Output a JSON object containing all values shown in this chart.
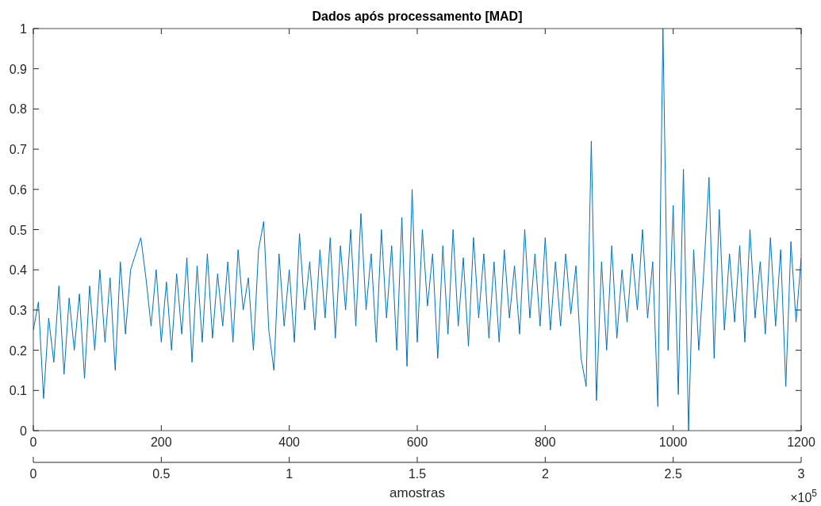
{
  "chart_data": {
    "type": "line",
    "title": "Dados após processamento [MAD]",
    "x2label": "amostras",
    "annotations": [
      "×10$^{5}$"
    ],
    "xlim": [
      0,
      1200
    ],
    "xticks": [
      0,
      200,
      400,
      600,
      800,
      1000,
      1200
    ],
    "x2lim": [
      0,
      3
    ],
    "x2ticks": [
      0,
      0.5,
      1,
      1.5,
      2,
      2.5,
      3
    ],
    "ylim": [
      0,
      1
    ],
    "yticks": [
      0,
      0.1,
      0.2,
      0.3,
      0.4,
      0.5,
      0.6,
      0.7,
      0.8,
      0.9,
      1
    ],
    "grid": false,
    "x": [
      0,
      8,
      16,
      24,
      32,
      40,
      48,
      56,
      64,
      72,
      80,
      88,
      96,
      104,
      112,
      120,
      128,
      136,
      144,
      152,
      160,
      168,
      176,
      184,
      192,
      200,
      208,
      216,
      224,
      232,
      240,
      248,
      256,
      264,
      272,
      280,
      288,
      296,
      304,
      312,
      320,
      328,
      336,
      344,
      352,
      360,
      368,
      376,
      384,
      392,
      400,
      408,
      416,
      424,
      432,
      440,
      448,
      456,
      464,
      472,
      480,
      488,
      496,
      504,
      512,
      520,
      528,
      536,
      544,
      552,
      560,
      568,
      576,
      584,
      592,
      600,
      608,
      616,
      624,
      632,
      640,
      648,
      656,
      664,
      672,
      680,
      688,
      696,
      704,
      712,
      720,
      728,
      736,
      744,
      752,
      760,
      768,
      776,
      784,
      792,
      800,
      808,
      816,
      824,
      832,
      840,
      848,
      856,
      864,
      872,
      880,
      888,
      896,
      904,
      912,
      920,
      928,
      936,
      944,
      952,
      960,
      968,
      976,
      984,
      992,
      1000,
      1008,
      1016,
      1024,
      1032,
      1040,
      1048,
      1056,
      1064,
      1072,
      1080,
      1088,
      1096,
      1104,
      1112,
      1120,
      1128,
      1136,
      1144,
      1152,
      1160,
      1168,
      1176,
      1184,
      1192,
      1200
    ],
    "series": [
      {
        "color": "#0072bd",
        "values": [
          0.25,
          0.32,
          0.08,
          0.28,
          0.17,
          0.36,
          0.14,
          0.33,
          0.2,
          0.34,
          0.13,
          0.36,
          0.2,
          0.4,
          0.22,
          0.38,
          0.15,
          0.42,
          0.24,
          0.4,
          0.44,
          0.48,
          0.38,
          0.26,
          0.4,
          0.22,
          0.37,
          0.2,
          0.39,
          0.24,
          0.43,
          0.17,
          0.41,
          0.22,
          0.44,
          0.23,
          0.39,
          0.26,
          0.42,
          0.22,
          0.45,
          0.3,
          0.38,
          0.2,
          0.45,
          0.52,
          0.25,
          0.15,
          0.44,
          0.26,
          0.4,
          0.22,
          0.49,
          0.3,
          0.42,
          0.25,
          0.45,
          0.28,
          0.48,
          0.23,
          0.46,
          0.3,
          0.5,
          0.26,
          0.54,
          0.3,
          0.44,
          0.22,
          0.5,
          0.28,
          0.46,
          0.2,
          0.53,
          0.16,
          0.6,
          0.22,
          0.5,
          0.31,
          0.44,
          0.18,
          0.46,
          0.24,
          0.5,
          0.26,
          0.43,
          0.21,
          0.48,
          0.28,
          0.44,
          0.23,
          0.42,
          0.22,
          0.45,
          0.28,
          0.41,
          0.24,
          0.5,
          0.28,
          0.44,
          0.26,
          0.48,
          0.25,
          0.42,
          0.26,
          0.44,
          0.29,
          0.41,
          0.18,
          0.11,
          0.72,
          0.075,
          0.42,
          0.2,
          0.46,
          0.23,
          0.4,
          0.27,
          0.44,
          0.3,
          0.5,
          0.28,
          0.42,
          0.06,
          1.0,
          0.2,
          0.56,
          0.09,
          0.65,
          0,
          0.45,
          0.2,
          0.4,
          0.63,
          0.18,
          0.55,
          0.25,
          0.44,
          0.27,
          0.46,
          0.22,
          0.5,
          0.28,
          0.42,
          0.24,
          0.48,
          0.26,
          0.45,
          0.11,
          0.47,
          0.27,
          0.43
        ]
      }
    ]
  }
}
